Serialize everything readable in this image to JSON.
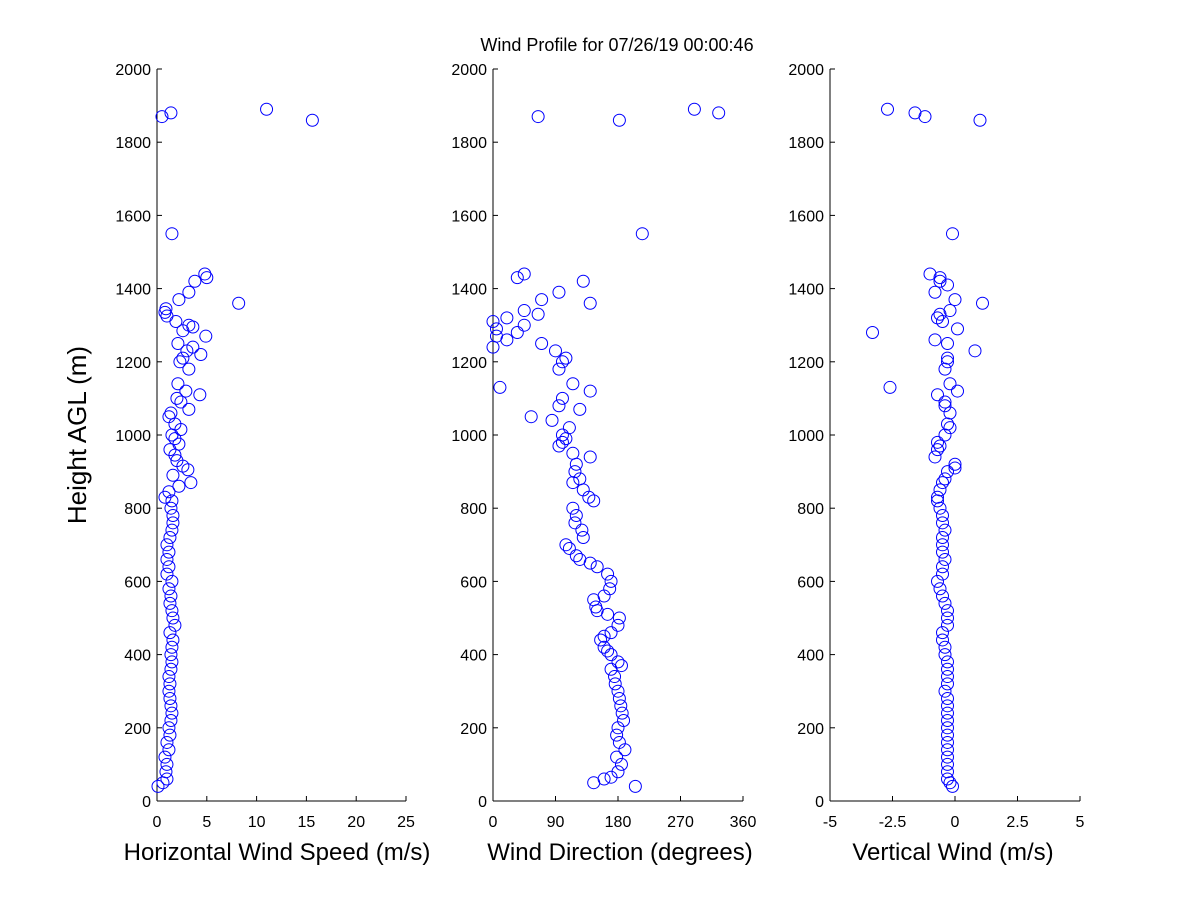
{
  "figure": {
    "title": "Wind Profile for  07/26/19 00:00:46",
    "ylabel": "Height AGL (m)",
    "marker_color": "#0000ff",
    "background": "#ffffff"
  },
  "chart_data": [
    {
      "type": "scatter",
      "xlabel": "Horizontal Wind Speed (m/s)",
      "ylabel": "Height AGL (m)",
      "xlim": [
        0,
        25
      ],
      "ylim": [
        0,
        2000
      ],
      "xticks": [
        0,
        5,
        10,
        15,
        20,
        25
      ],
      "xtick_labels": [
        "0",
        "5",
        "10",
        "15",
        "20",
        "25"
      ],
      "yticks": [
        0,
        200,
        400,
        600,
        800,
        1000,
        1200,
        1400,
        1600,
        1800,
        2000
      ],
      "ytick_labels": [
        "0",
        "200",
        "400",
        "600",
        "800",
        "1000",
        "1200",
        "1400",
        "1600",
        "1800",
        "2000"
      ],
      "grid": false,
      "marker": "open-circle",
      "points": [
        [
          0.1,
          40
        ],
        [
          0.6,
          50
        ],
        [
          1.0,
          60
        ],
        [
          0.9,
          80
        ],
        [
          1.0,
          100
        ],
        [
          0.8,
          120
        ],
        [
          1.2,
          140
        ],
        [
          1.0,
          160
        ],
        [
          1.3,
          180
        ],
        [
          1.2,
          200
        ],
        [
          1.4,
          220
        ],
        [
          1.5,
          240
        ],
        [
          1.4,
          260
        ],
        [
          1.3,
          280
        ],
        [
          1.2,
          300
        ],
        [
          1.3,
          320
        ],
        [
          1.2,
          340
        ],
        [
          1.4,
          360
        ],
        [
          1.5,
          380
        ],
        [
          1.4,
          400
        ],
        [
          1.5,
          420
        ],
        [
          1.6,
          440
        ],
        [
          1.3,
          460
        ],
        [
          1.8,
          480
        ],
        [
          1.6,
          500
        ],
        [
          1.5,
          520
        ],
        [
          1.3,
          540
        ],
        [
          1.4,
          560
        ],
        [
          1.2,
          580
        ],
        [
          1.5,
          600
        ],
        [
          1.0,
          620
        ],
        [
          1.2,
          640
        ],
        [
          1.0,
          660
        ],
        [
          1.2,
          680
        ],
        [
          1.0,
          700
        ],
        [
          1.3,
          720
        ],
        [
          1.5,
          740
        ],
        [
          1.6,
          760
        ],
        [
          1.6,
          780
        ],
        [
          1.4,
          800
        ],
        [
          1.5,
          820
        ],
        [
          0.8,
          830
        ],
        [
          1.2,
          845
        ],
        [
          2.2,
          860
        ],
        [
          3.4,
          870
        ],
        [
          1.6,
          890
        ],
        [
          3.1,
          905
        ],
        [
          2.6,
          915
        ],
        [
          2.0,
          930
        ],
        [
          1.8,
          945
        ],
        [
          1.3,
          960
        ],
        [
          2.2,
          975
        ],
        [
          1.8,
          990
        ],
        [
          1.5,
          1000
        ],
        [
          2.4,
          1015
        ],
        [
          1.8,
          1030
        ],
        [
          1.2,
          1050
        ],
        [
          1.4,
          1060
        ],
        [
          3.2,
          1070
        ],
        [
          2.4,
          1090
        ],
        [
          2.0,
          1100
        ],
        [
          4.3,
          1110
        ],
        [
          2.9,
          1120
        ],
        [
          2.1,
          1140
        ],
        [
          3.2,
          1180
        ],
        [
          2.3,
          1200
        ],
        [
          2.6,
          1210
        ],
        [
          4.4,
          1220
        ],
        [
          3.0,
          1230
        ],
        [
          3.6,
          1240
        ],
        [
          2.1,
          1250
        ],
        [
          4.9,
          1270
        ],
        [
          2.6,
          1285
        ],
        [
          3.6,
          1295
        ],
        [
          3.2,
          1300
        ],
        [
          1.9,
          1310
        ],
        [
          1.0,
          1325
        ],
        [
          0.8,
          1335
        ],
        [
          0.9,
          1345
        ],
        [
          8.2,
          1360
        ],
        [
          2.2,
          1370
        ],
        [
          3.2,
          1390
        ],
        [
          3.8,
          1420
        ],
        [
          4.8,
          1440
        ],
        [
          5.0,
          1430
        ],
        [
          1.5,
          1550
        ],
        [
          0.5,
          1870
        ],
        [
          1.4,
          1880
        ],
        [
          11.0,
          1890
        ],
        [
          15.6,
          1860
        ]
      ]
    },
    {
      "type": "scatter",
      "xlabel": "Wind Direction (degrees)",
      "ylabel": "",
      "xlim": [
        0,
        360
      ],
      "ylim": [
        0,
        2000
      ],
      "xticks": [
        0,
        90,
        180,
        270,
        360
      ],
      "xtick_labels": [
        "0",
        "90",
        "180",
        "270",
        "360"
      ],
      "yticks": [
        0,
        200,
        400,
        600,
        800,
        1000,
        1200,
        1400,
        1600,
        1800,
        2000
      ],
      "ytick_labels": [
        "0",
        "200",
        "400",
        "600",
        "800",
        "1000",
        "1200",
        "1400",
        "1600",
        "1800",
        "2000"
      ],
      "grid": false,
      "marker": "open-circle",
      "points": [
        [
          205,
          40
        ],
        [
          145,
          50
        ],
        [
          160,
          60
        ],
        [
          170,
          65
        ],
        [
          180,
          80
        ],
        [
          185,
          100
        ],
        [
          178,
          120
        ],
        [
          190,
          140
        ],
        [
          182,
          160
        ],
        [
          178,
          180
        ],
        [
          180,
          200
        ],
        [
          188,
          220
        ],
        [
          186,
          240
        ],
        [
          184,
          260
        ],
        [
          182,
          280
        ],
        [
          180,
          300
        ],
        [
          176,
          320
        ],
        [
          175,
          340
        ],
        [
          170,
          360
        ],
        [
          185,
          370
        ],
        [
          180,
          380
        ],
        [
          170,
          400
        ],
        [
          165,
          410
        ],
        [
          160,
          420
        ],
        [
          155,
          440
        ],
        [
          160,
          450
        ],
        [
          170,
          460
        ],
        [
          180,
          480
        ],
        [
          182,
          500
        ],
        [
          165,
          510
        ],
        [
          150,
          520
        ],
        [
          148,
          530
        ],
        [
          145,
          550
        ],
        [
          160,
          560
        ],
        [
          168,
          580
        ],
        [
          170,
          600
        ],
        [
          165,
          620
        ],
        [
          150,
          640
        ],
        [
          140,
          650
        ],
        [
          125,
          660
        ],
        [
          120,
          670
        ],
        [
          110,
          690
        ],
        [
          105,
          700
        ],
        [
          130,
          720
        ],
        [
          128,
          740
        ],
        [
          118,
          760
        ],
        [
          120,
          780
        ],
        [
          115,
          800
        ],
        [
          145,
          820
        ],
        [
          138,
          830
        ],
        [
          130,
          850
        ],
        [
          115,
          870
        ],
        [
          125,
          880
        ],
        [
          118,
          900
        ],
        [
          120,
          920
        ],
        [
          140,
          940
        ],
        [
          115,
          950
        ],
        [
          95,
          970
        ],
        [
          100,
          980
        ],
        [
          105,
          990
        ],
        [
          100,
          1000
        ],
        [
          110,
          1020
        ],
        [
          85,
          1040
        ],
        [
          55,
          1050
        ],
        [
          125,
          1070
        ],
        [
          95,
          1080
        ],
        [
          100,
          1100
        ],
        [
          140,
          1120
        ],
        [
          10,
          1130
        ],
        [
          115,
          1140
        ],
        [
          95,
          1180
        ],
        [
          100,
          1200
        ],
        [
          105,
          1210
        ],
        [
          90,
          1230
        ],
        [
          70,
          1250
        ],
        [
          0,
          1240
        ],
        [
          20,
          1260
        ],
        [
          5,
          1270
        ],
        [
          35,
          1280
        ],
        [
          5,
          1290
        ],
        [
          45,
          1300
        ],
        [
          0,
          1310
        ],
        [
          20,
          1320
        ],
        [
          65,
          1330
        ],
        [
          45,
          1340
        ],
        [
          140,
          1360
        ],
        [
          70,
          1370
        ],
        [
          95,
          1390
        ],
        [
          130,
          1420
        ],
        [
          35,
          1430
        ],
        [
          45,
          1440
        ],
        [
          215,
          1550
        ],
        [
          65,
          1870
        ],
        [
          182,
          1860
        ],
        [
          290,
          1890
        ],
        [
          325,
          1880
        ]
      ]
    },
    {
      "type": "scatter",
      "xlabel": "Vertical Wind (m/s)",
      "ylabel": "",
      "xlim": [
        -5,
        5
      ],
      "ylim": [
        0,
        2000
      ],
      "xticks": [
        -5,
        -2.5,
        0,
        2.5,
        5
      ],
      "xtick_labels": [
        "-5",
        "-2.5",
        "0",
        "2.5",
        "5"
      ],
      "yticks": [
        0,
        200,
        400,
        600,
        800,
        1000,
        1200,
        1400,
        1600,
        1800,
        2000
      ],
      "ytick_labels": [
        "0",
        "200",
        "400",
        "600",
        "800",
        "1000",
        "1200",
        "1400",
        "1600",
        "1800",
        "2000"
      ],
      "grid": false,
      "marker": "open-circle",
      "points": [
        [
          -0.1,
          40
        ],
        [
          -0.2,
          50
        ],
        [
          -0.3,
          60
        ],
        [
          -0.3,
          80
        ],
        [
          -0.3,
          100
        ],
        [
          -0.3,
          120
        ],
        [
          -0.3,
          140
        ],
        [
          -0.3,
          160
        ],
        [
          -0.3,
          180
        ],
        [
          -0.3,
          200
        ],
        [
          -0.3,
          220
        ],
        [
          -0.3,
          240
        ],
        [
          -0.3,
          260
        ],
        [
          -0.3,
          280
        ],
        [
          -0.4,
          300
        ],
        [
          -0.3,
          320
        ],
        [
          -0.3,
          340
        ],
        [
          -0.3,
          360
        ],
        [
          -0.3,
          380
        ],
        [
          -0.4,
          400
        ],
        [
          -0.4,
          420
        ],
        [
          -0.5,
          440
        ],
        [
          -0.5,
          460
        ],
        [
          -0.3,
          480
        ],
        [
          -0.3,
          500
        ],
        [
          -0.3,
          520
        ],
        [
          -0.4,
          540
        ],
        [
          -0.5,
          560
        ],
        [
          -0.6,
          580
        ],
        [
          -0.7,
          600
        ],
        [
          -0.5,
          620
        ],
        [
          -0.5,
          640
        ],
        [
          -0.4,
          660
        ],
        [
          -0.5,
          680
        ],
        [
          -0.5,
          700
        ],
        [
          -0.5,
          720
        ],
        [
          -0.4,
          740
        ],
        [
          -0.5,
          760
        ],
        [
          -0.5,
          780
        ],
        [
          -0.6,
          800
        ],
        [
          -0.7,
          820
        ],
        [
          -0.7,
          830
        ],
        [
          -0.6,
          850
        ],
        [
          -0.5,
          870
        ],
        [
          -0.4,
          880
        ],
        [
          -0.3,
          900
        ],
        [
          0.0,
          910
        ],
        [
          0.0,
          920
        ],
        [
          -0.8,
          940
        ],
        [
          -0.7,
          960
        ],
        [
          -0.6,
          970
        ],
        [
          -0.7,
          980
        ],
        [
          -0.4,
          1000
        ],
        [
          -0.2,
          1020
        ],
        [
          -0.3,
          1030
        ],
        [
          -0.2,
          1060
        ],
        [
          -0.4,
          1080
        ],
        [
          -0.4,
          1090
        ],
        [
          -0.7,
          1110
        ],
        [
          0.1,
          1120
        ],
        [
          -0.2,
          1140
        ],
        [
          -2.6,
          1130
        ],
        [
          -0.4,
          1180
        ],
        [
          -0.3,
          1200
        ],
        [
          -0.3,
          1210
        ],
        [
          0.8,
          1230
        ],
        [
          -0.3,
          1250
        ],
        [
          -0.8,
          1260
        ],
        [
          -3.3,
          1280
        ],
        [
          0.1,
          1290
        ],
        [
          -0.5,
          1310
        ],
        [
          -0.7,
          1320
        ],
        [
          -0.6,
          1330
        ],
        [
          -0.2,
          1340
        ],
        [
          1.1,
          1360
        ],
        [
          0.0,
          1370
        ],
        [
          -0.8,
          1390
        ],
        [
          -0.3,
          1410
        ],
        [
          -0.6,
          1420
        ],
        [
          -0.6,
          1430
        ],
        [
          -1.0,
          1440
        ],
        [
          -0.1,
          1550
        ],
        [
          -1.2,
          1870
        ],
        [
          -1.6,
          1880
        ],
        [
          -2.7,
          1890
        ],
        [
          1.0,
          1860
        ]
      ]
    }
  ]
}
